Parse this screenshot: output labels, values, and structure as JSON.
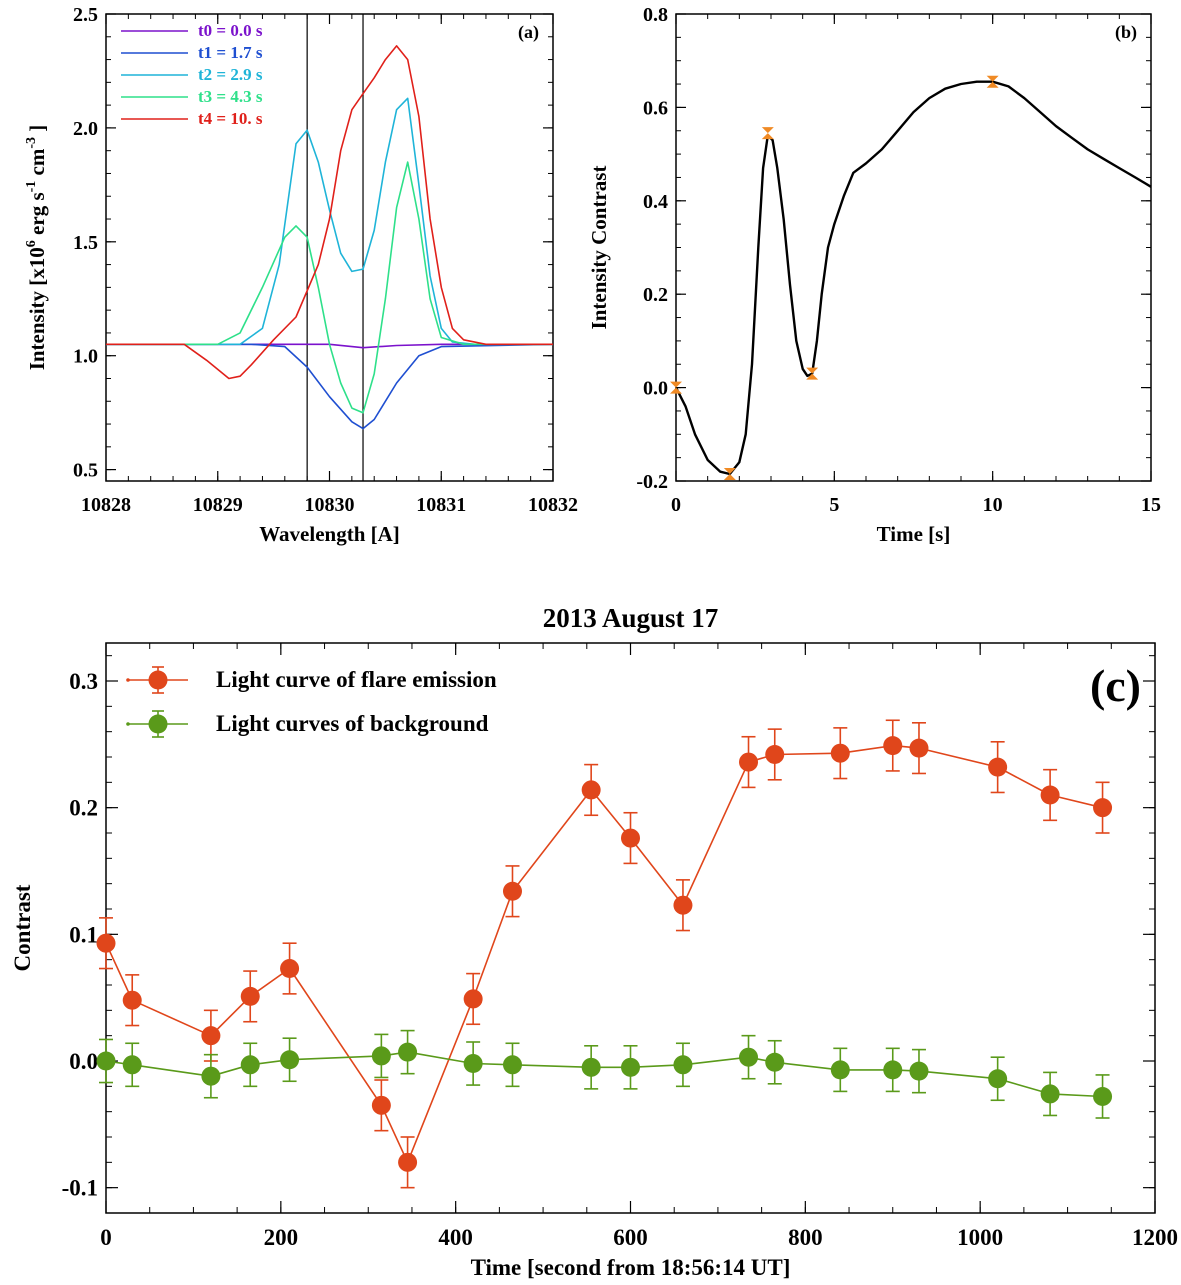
{
  "chart_data": [
    {
      "panel": "a",
      "type": "line",
      "panel_label": "(a)",
      "xlabel": "Wavelength [A]",
      "ylabel_parts": [
        "Intensity [x10",
        "6",
        " erg s",
        "-1",
        " cm",
        "-3",
        " ]"
      ],
      "xlim": [
        10828,
        10832
      ],
      "ylim": [
        0.45,
        2.5
      ],
      "xticks": [
        10828,
        10829,
        10830,
        10831,
        10832
      ],
      "yticks": [
        0.5,
        1.0,
        1.5,
        2.0,
        2.5
      ],
      "ytick_labels": [
        "0.5",
        "1.0",
        "1.5",
        "2.0",
        "2.5"
      ],
      "vertical_lines": [
        10829.8,
        10830.3
      ],
      "legend_position": "top-left",
      "series": [
        {
          "name": "t0 = 0.0 s",
          "color": "#7b12cc",
          "x": [
            10828,
            10829.5,
            10830.0,
            10830.3,
            10830.6,
            10831.0,
            10832
          ],
          "y": [
            1.05,
            1.05,
            1.05,
            1.035,
            1.045,
            1.05,
            1.05
          ]
        },
        {
          "name": "t1 = 1.7 s",
          "color": "#1f4fd1",
          "x": [
            10828,
            10829.3,
            10829.6,
            10829.8,
            10830.0,
            10830.2,
            10830.3,
            10830.4,
            10830.6,
            10830.8,
            10831.0,
            10832
          ],
          "y": [
            1.05,
            1.05,
            1.04,
            0.95,
            0.82,
            0.71,
            0.68,
            0.72,
            0.88,
            1.0,
            1.04,
            1.05
          ]
        },
        {
          "name": "t2 = 2.9 s",
          "color": "#1fb4d8",
          "x": [
            10828,
            10829.2,
            10829.4,
            10829.55,
            10829.7,
            10829.8,
            10829.9,
            10830.0,
            10830.1,
            10830.2,
            10830.3,
            10830.4,
            10830.5,
            10830.6,
            10830.7,
            10830.8,
            10830.9,
            10831.0,
            10831.1,
            10831.3,
            10832
          ],
          "y": [
            1.05,
            1.05,
            1.12,
            1.4,
            1.93,
            1.99,
            1.85,
            1.64,
            1.45,
            1.37,
            1.38,
            1.55,
            1.85,
            2.08,
            2.13,
            1.75,
            1.35,
            1.12,
            1.06,
            1.05,
            1.05
          ]
        },
        {
          "name": "t3 = 4.3 s",
          "color": "#2ee08a",
          "x": [
            10828,
            10829.0,
            10829.2,
            10829.4,
            10829.6,
            10829.7,
            10829.8,
            10829.9,
            10830.0,
            10830.1,
            10830.2,
            10830.3,
            10830.4,
            10830.5,
            10830.6,
            10830.7,
            10830.8,
            10830.9,
            10831.0,
            10831.2,
            10832
          ],
          "y": [
            1.05,
            1.05,
            1.1,
            1.3,
            1.52,
            1.57,
            1.52,
            1.3,
            1.05,
            0.88,
            0.77,
            0.75,
            0.92,
            1.25,
            1.65,
            1.85,
            1.6,
            1.25,
            1.08,
            1.05,
            1.05
          ]
        },
        {
          "name": "t4 = 10. s",
          "color": "#e0201a",
          "x": [
            10828,
            10828.7,
            10828.9,
            10829.1,
            10829.2,
            10829.3,
            10829.5,
            10829.7,
            10829.9,
            10830.0,
            10830.1,
            10830.2,
            10830.3,
            10830.4,
            10830.5,
            10830.6,
            10830.7,
            10830.8,
            10830.9,
            10831.0,
            10831.1,
            10831.2,
            10831.4,
            10832
          ],
          "y": [
            1.05,
            1.05,
            0.98,
            0.9,
            0.91,
            0.96,
            1.07,
            1.17,
            1.4,
            1.6,
            1.9,
            2.08,
            2.15,
            2.22,
            2.3,
            2.36,
            2.3,
            2.05,
            1.6,
            1.3,
            1.12,
            1.07,
            1.05,
            1.05
          ]
        }
      ]
    },
    {
      "panel": "b",
      "type": "line",
      "panel_label": "(b)",
      "xlabel": "Time [s]",
      "ylabel": "Intensity Contrast",
      "xlim": [
        0,
        15
      ],
      "ylim": [
        -0.2,
        0.8
      ],
      "xticks": [
        0,
        5,
        10,
        15
      ],
      "yticks": [
        -0.2,
        0.0,
        0.2,
        0.4,
        0.6,
        0.8
      ],
      "ytick_labels": [
        "-0.2",
        "0.0",
        "0.2",
        "0.4",
        "0.6",
        "0.8"
      ],
      "series": [
        {
          "color": "#000000",
          "x": [
            0,
            0.3,
            0.6,
            1.0,
            1.4,
            1.7,
            2.0,
            2.2,
            2.4,
            2.6,
            2.75,
            2.9,
            3.05,
            3.2,
            3.4,
            3.6,
            3.8,
            4.0,
            4.15,
            4.3,
            4.45,
            4.6,
            4.8,
            5.0,
            5.3,
            5.6,
            6.0,
            6.5,
            7.0,
            7.5,
            8.0,
            8.5,
            9.0,
            9.5,
            10.0,
            10.5,
            11.0,
            11.5,
            12.0,
            12.5,
            13.0,
            13.5,
            14.0,
            14.5,
            15.0
          ],
          "y": [
            0.0,
            -0.04,
            -0.1,
            -0.155,
            -0.18,
            -0.185,
            -0.16,
            -0.1,
            0.05,
            0.3,
            0.47,
            0.54,
            0.53,
            0.47,
            0.36,
            0.22,
            0.1,
            0.04,
            0.025,
            0.03,
            0.1,
            0.2,
            0.3,
            0.35,
            0.41,
            0.46,
            0.48,
            0.51,
            0.55,
            0.59,
            0.62,
            0.64,
            0.65,
            0.655,
            0.655,
            0.645,
            0.62,
            0.59,
            0.56,
            0.535,
            0.51,
            0.49,
            0.47,
            0.45,
            0.43
          ]
        }
      ],
      "markers": {
        "color": "#f08a24",
        "x": [
          0,
          1.7,
          2.9,
          4.3,
          10.0
        ],
        "y": [
          0.0,
          -0.185,
          0.545,
          0.03,
          0.655
        ]
      }
    },
    {
      "panel": "c",
      "type": "line",
      "title": "2013 August 17",
      "panel_label": "(c)",
      "xlabel": "Time [second from 18:56:14 UT]",
      "ylabel": "Contrast",
      "xlim": [
        0,
        1200
      ],
      "ylim": [
        -0.12,
        0.33
      ],
      "xticks": [
        0,
        200,
        400,
        600,
        800,
        1000,
        1200
      ],
      "yticks": [
        -0.1,
        0.0,
        0.1,
        0.2,
        0.3
      ],
      "ytick_labels": [
        "-0.1",
        "0.0",
        "0.1",
        "0.2",
        "0.3"
      ],
      "legend_position": "top-left",
      "series": [
        {
          "name": "Light curve of flare emission",
          "color": "#e0461b",
          "x": [
            0,
            30,
            120,
            165,
            210,
            315,
            345,
            420,
            465,
            555,
            600,
            660,
            735,
            765,
            840,
            900,
            930,
            1020,
            1080,
            1140
          ],
          "y": [
            0.093,
            0.048,
            0.02,
            0.051,
            0.073,
            -0.035,
            -0.08,
            0.049,
            0.134,
            0.214,
            0.176,
            0.123,
            0.236,
            0.242,
            0.243,
            0.249,
            0.247,
            0.232,
            0.21,
            0.2
          ],
          "error": 0.02
        },
        {
          "name": "Light curves of background",
          "color": "#5a9a1a",
          "x": [
            0,
            30,
            120,
            165,
            210,
            315,
            345,
            420,
            465,
            555,
            600,
            660,
            735,
            765,
            840,
            900,
            930,
            1020,
            1080,
            1140
          ],
          "y": [
            0.0,
            -0.003,
            -0.012,
            -0.003,
            0.001,
            0.004,
            0.007,
            -0.002,
            -0.003,
            -0.005,
            -0.005,
            -0.003,
            0.003,
            -0.001,
            -0.007,
            -0.007,
            -0.008,
            -0.014,
            -0.026,
            -0.028
          ],
          "error": 0.017
        }
      ]
    }
  ]
}
